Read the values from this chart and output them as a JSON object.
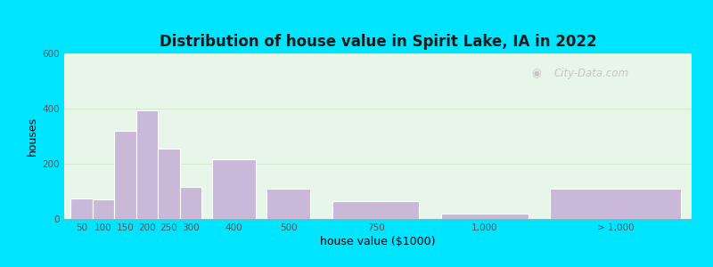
{
  "title": "Distribution of house value in Spirit Lake, IA in 2022",
  "xlabel": "house value ($1000)",
  "ylabel": "houses",
  "bar_color": "#c9b8d8",
  "bar_edgecolor": "#ffffff",
  "bg_outer": "#00e5ff",
  "bg_plot": "#e8f5e9",
  "ylim": [
    0,
    600
  ],
  "yticks": [
    0,
    200,
    400,
    600
  ],
  "categories": [
    "50",
    "100",
    "150",
    "200",
    "250",
    "300",
    "400",
    "500",
    "750",
    "1,000",
    "> 1,000"
  ],
  "values": [
    75,
    70,
    320,
    395,
    255,
    115,
    215,
    110,
    65,
    20,
    110
  ],
  "bar_lefts": [
    0,
    1,
    2,
    3,
    4,
    5,
    6.5,
    9,
    12,
    17,
    22
  ],
  "bar_widths": [
    1,
    1,
    1,
    1,
    1,
    1,
    2,
    2,
    4,
    4,
    6
  ],
  "xtick_positions": [
    0.5,
    1.5,
    2.5,
    3.5,
    4.5,
    5.5,
    7.5,
    10,
    14,
    19,
    25
  ],
  "xlim": [
    -0.3,
    28.5
  ],
  "watermark": "City-Data.com",
  "grid_color": "#d0e8c8",
  "grid_linewidth": 0.6
}
